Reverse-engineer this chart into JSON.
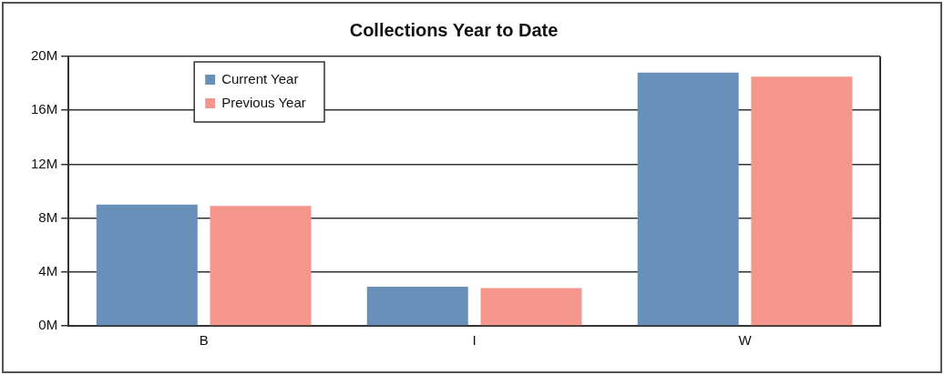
{
  "chart_data": {
    "type": "bar",
    "title": "Collections Year to Date",
    "categories": [
      "B",
      "I",
      "W"
    ],
    "series": [
      {
        "name": "Current Year",
        "color": "#6890b8",
        "values": [
          9.0,
          2.9,
          18.8
        ]
      },
      {
        "name": "Previous Year",
        "color": "#f4968c",
        "values": [
          8.9,
          2.8,
          18.5
        ]
      }
    ],
    "ylim": [
      0,
      20
    ],
    "yticks": [
      {
        "value": 0,
        "label": "0M"
      },
      {
        "value": 4,
        "label": "4M"
      },
      {
        "value": 8,
        "label": "8M"
      },
      {
        "value": 12,
        "label": "12M"
      },
      {
        "value": 16,
        "label": "16M"
      },
      {
        "value": 20,
        "label": "20M"
      }
    ],
    "grid": "y",
    "legend": "top left"
  }
}
